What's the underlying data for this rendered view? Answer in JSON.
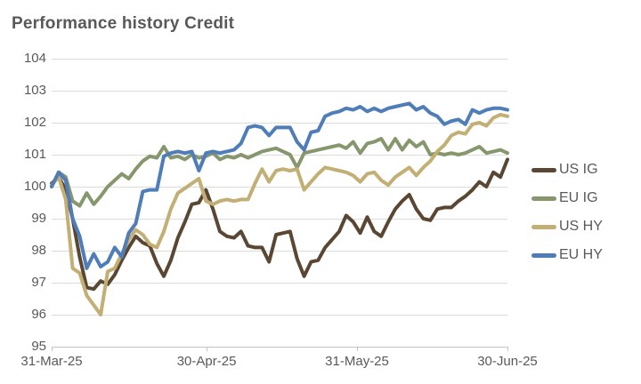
{
  "title": "Performance history Credit",
  "colors": {
    "title_text": "#595959",
    "axis_text": "#595959",
    "gridline": "#dcdcdc",
    "axis_line": "#c4c4c4",
    "us_ig": "#5a4733",
    "eu_ig": "#87976d",
    "us_hy": "#c3ae74",
    "eu_hy": "#4f7db8"
  },
  "chart_data": {
    "type": "line",
    "title": "Performance history Credit",
    "xlabel": "",
    "ylabel": "",
    "ylim": [
      95,
      104
    ],
    "y_ticks": [
      104,
      103,
      102,
      101,
      100,
      99,
      98,
      97,
      96,
      95
    ],
    "x_tick_labels": [
      "31-Mar-25",
      "30-Apr-25",
      "31-May-25",
      "30-Jun-25"
    ],
    "grid": "horizontal",
    "legend_position": "right",
    "series": [
      {
        "name": "US IG",
        "color": "#5a4733",
        "values": [
          100.1,
          100.3,
          99.9,
          99.0,
          97.8,
          96.85,
          96.8,
          97.05,
          96.95,
          97.25,
          97.7,
          98.1,
          98.45,
          98.25,
          98.15,
          97.6,
          97.2,
          97.7,
          98.4,
          98.9,
          99.45,
          99.5,
          99.9,
          99.3,
          98.6,
          98.45,
          98.4,
          98.6,
          98.15,
          98.1,
          98.1,
          97.65,
          98.5,
          98.55,
          98.6,
          97.75,
          97.2,
          97.65,
          97.7,
          98.1,
          98.35,
          98.6,
          99.1,
          98.9,
          98.55,
          99.05,
          98.6,
          98.45,
          98.9,
          99.3,
          99.55,
          99.75,
          99.3,
          99.0,
          98.95,
          99.3,
          99.35,
          99.35,
          99.55,
          99.7,
          99.9,
          100.15,
          100.0,
          100.45,
          100.3,
          100.85
        ]
      },
      {
        "name": "EU IG",
        "color": "#87976d",
        "values": [
          100.0,
          100.45,
          100.3,
          99.55,
          99.4,
          99.8,
          99.45,
          99.7,
          100.0,
          100.2,
          100.4,
          100.25,
          100.55,
          100.8,
          100.95,
          100.9,
          101.25,
          100.9,
          100.95,
          100.85,
          101.0,
          100.9,
          100.95,
          101.05,
          100.85,
          100.95,
          100.9,
          101.0,
          100.9,
          101.0,
          101.1,
          101.15,
          101.2,
          101.1,
          101.0,
          100.6,
          101.05,
          101.1,
          101.15,
          101.2,
          101.25,
          101.3,
          101.2,
          101.4,
          101.05,
          101.35,
          101.4,
          101.5,
          101.15,
          101.5,
          101.15,
          101.45,
          101.25,
          101.4,
          101.0,
          101.05,
          101.0,
          101.05,
          101.0,
          101.05,
          101.15,
          101.25,
          101.05,
          101.1,
          101.15,
          101.05
        ]
      },
      {
        "name": "US HY",
        "color": "#c3ae74",
        "values": [
          100.05,
          100.3,
          99.6,
          97.45,
          97.3,
          96.6,
          96.3,
          96.0,
          97.35,
          97.45,
          97.9,
          98.35,
          98.65,
          98.5,
          98.2,
          98.1,
          98.6,
          99.3,
          99.8,
          99.95,
          100.1,
          100.25,
          99.55,
          99.45,
          99.55,
          99.6,
          99.55,
          99.6,
          99.6,
          100.1,
          100.55,
          100.15,
          100.5,
          100.55,
          100.5,
          100.55,
          99.9,
          100.15,
          100.4,
          100.6,
          100.55,
          100.5,
          100.45,
          100.35,
          100.15,
          100.4,
          100.45,
          100.2,
          100.05,
          100.3,
          100.45,
          100.6,
          100.35,
          100.6,
          100.8,
          101.1,
          101.3,
          101.6,
          101.7,
          101.65,
          101.95,
          102.0,
          101.9,
          102.15,
          102.25,
          102.2
        ]
      },
      {
        "name": "EU HY",
        "color": "#4f7db8",
        "values": [
          100.0,
          100.45,
          100.2,
          99.0,
          98.45,
          97.45,
          97.9,
          97.5,
          97.65,
          98.1,
          97.8,
          98.55,
          98.85,
          99.85,
          99.9,
          99.9,
          100.95,
          101.05,
          101.1,
          101.05,
          101.1,
          100.5,
          101.05,
          101.1,
          101.05,
          101.1,
          101.15,
          101.35,
          101.85,
          101.9,
          101.85,
          101.6,
          101.85,
          101.85,
          101.85,
          101.4,
          101.15,
          101.7,
          101.75,
          102.2,
          102.3,
          102.35,
          102.45,
          102.4,
          102.5,
          102.35,
          102.45,
          102.35,
          102.45,
          102.5,
          102.55,
          102.6,
          102.4,
          102.5,
          102.3,
          102.2,
          101.95,
          102.05,
          102.1,
          101.95,
          102.4,
          102.3,
          102.4,
          102.45,
          102.45,
          102.4
        ]
      }
    ]
  }
}
